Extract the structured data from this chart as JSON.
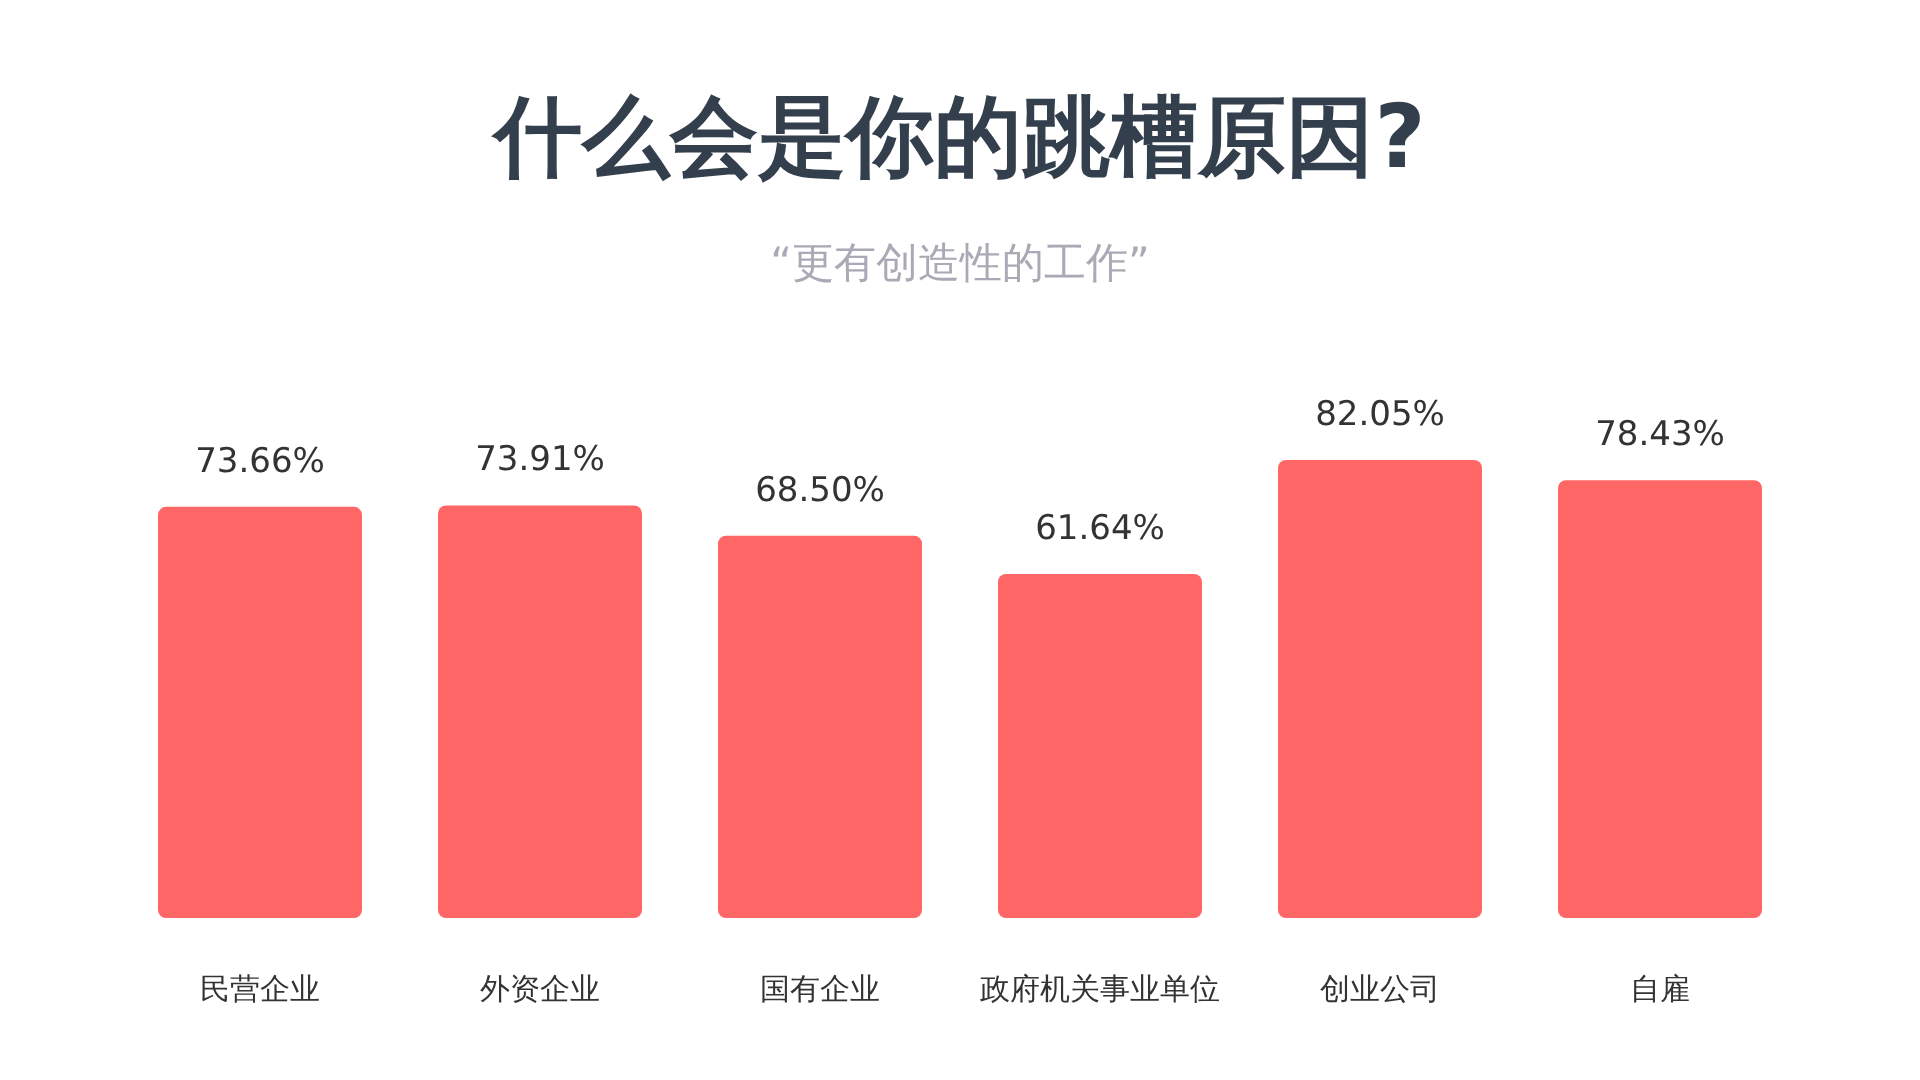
{
  "chart_data": {
    "type": "bar",
    "title": "什么会是你的跳槽原因?",
    "subtitle": "“更有创造性的工作”",
    "categories": [
      "民营企业",
      "外资企业",
      "国有企业",
      "政府机关事业单位",
      "创业公司",
      "自雇"
    ],
    "values": [
      73.66,
      73.91,
      68.5,
      61.64,
      82.05,
      78.43
    ],
    "value_labels": [
      "73.66%",
      "73.91%",
      "68.50%",
      "61.64%",
      "82.05%",
      "78.43%"
    ],
    "color": "#ff6666"
  }
}
